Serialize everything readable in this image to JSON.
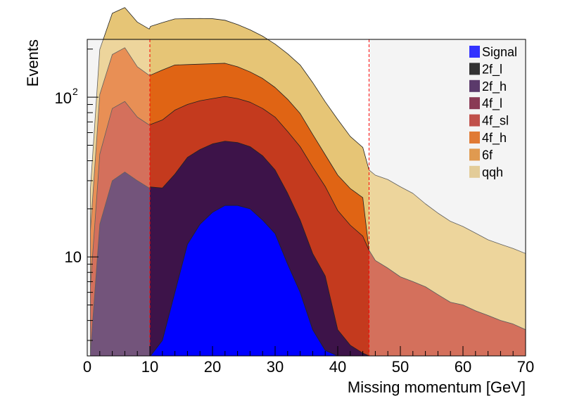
{
  "chart_data": {
    "type": "area",
    "title": "",
    "xlabel": "Missing momentum [GeV]",
    "ylabel": "Events",
    "xlim": [
      0,
      70
    ],
    "ylim": [
      2.4,
      230
    ],
    "y_scale": "log",
    "x_ticks": [
      "0",
      "10",
      "20",
      "30",
      "40",
      "50",
      "60",
      "70"
    ],
    "y_ticks": [
      {
        "value": 10,
        "base": "10",
        "exp": ""
      },
      {
        "value": 100,
        "base": "10",
        "exp": "2"
      }
    ],
    "cut_lines": [
      10,
      45
    ],
    "cut_line_color": "#ff0000",
    "excluded_region_color": "#f0f0f0",
    "legend_position": "top-right",
    "x": [
      0.5,
      2,
      4,
      6,
      8,
      9.9,
      10.1,
      12,
      14,
      16,
      18,
      20,
      22,
      24,
      26,
      28,
      30,
      32,
      34,
      36,
      38,
      40,
      42,
      44,
      45,
      46,
      48,
      50,
      52,
      54,
      56,
      58,
      60,
      62,
      64,
      66,
      68,
      70
    ],
    "series": [
      {
        "name": "Signal",
        "color": "#0000ff",
        "legend_color": "#3333ff",
        "values": [
          0,
          0,
          0,
          0,
          0,
          0,
          2.4,
          3,
          6,
          12,
          16,
          19,
          21,
          21,
          20,
          17,
          14,
          9,
          6,
          3.5,
          2.6,
          0,
          0,
          0,
          0,
          0,
          0,
          0,
          0,
          0,
          0,
          0,
          0,
          0,
          0,
          0,
          0,
          0
        ]
      },
      {
        "name": "2f_l",
        "color": "#333333",
        "legend_color": "#333333",
        "values": [
          0,
          0,
          0,
          0,
          0,
          0,
          0,
          0,
          0,
          0,
          0,
          0,
          0,
          0,
          0,
          0,
          0,
          0,
          0,
          0,
          0,
          0,
          0,
          0,
          0,
          0,
          0,
          0,
          0,
          0,
          0,
          0,
          0,
          0,
          0,
          0,
          0,
          0
        ]
      },
      {
        "name": "2f_h",
        "color": "#3d1349",
        "legend_color": "#5b3a6b",
        "values": [
          2.5,
          16,
          30,
          34,
          30,
          27,
          25,
          24,
          27,
          30,
          31,
          32,
          32,
          31,
          29,
          26,
          21,
          16,
          11,
          7,
          5,
          3.5,
          2.8,
          2.5,
          0,
          0,
          0,
          0,
          0,
          0,
          0,
          0,
          0,
          0,
          0,
          0,
          0,
          0
        ]
      },
      {
        "name": "4f_l",
        "color": "#8a3a4f",
        "legend_color": "#8a3a55",
        "values": [
          0,
          0,
          0,
          0,
          0,
          0,
          0,
          0,
          0,
          0,
          0,
          0,
          0,
          0,
          0,
          0,
          0,
          0,
          0,
          0,
          0,
          0,
          0,
          0,
          0,
          0,
          0,
          0,
          0,
          0,
          0,
          0,
          0,
          0,
          0,
          0,
          0,
          0
        ]
      },
      {
        "name": "4f_sl",
        "color": "#c43a1e",
        "legend_color": "#c0504a",
        "values": [
          4,
          28,
          55,
          60,
          45,
          40,
          40,
          45,
          50,
          48,
          48,
          47,
          48,
          46,
          44,
          42,
          40,
          36,
          32,
          26,
          20,
          16,
          13,
          11,
          11,
          9.5,
          8.5,
          7.5,
          7,
          6.5,
          5.8,
          5.2,
          5,
          4.6,
          4.3,
          4,
          3.8,
          3.5
        ]
      },
      {
        "name": "4f_h",
        "color": "#e06414",
        "legend_color": "#e07a35",
        "values": [
          8,
          60,
          100,
          110,
          80,
          70,
          70,
          76,
          76,
          70,
          66,
          64,
          62,
          57,
          51,
          46,
          40,
          36,
          30,
          22,
          16,
          13,
          11,
          10,
          0,
          0,
          0,
          0,
          0,
          0,
          0,
          0,
          0,
          0,
          0,
          0,
          0,
          0
        ]
      },
      {
        "name": "6f",
        "color": "#e09a50",
        "legend_color": "#e09a50",
        "values": [
          0,
          0,
          0,
          0,
          0,
          0,
          0,
          0,
          0,
          0,
          0,
          0,
          0,
          0,
          0,
          0,
          0,
          0,
          0,
          0,
          0,
          0,
          0,
          0,
          0,
          0,
          0,
          0,
          0,
          0,
          0,
          0,
          0,
          0,
          0,
          0,
          0,
          0
        ]
      },
      {
        "name": "qqh",
        "color": "#e6c576",
        "legend_color": "#e3cc98",
        "values": [
          12,
          95,
          150,
          160,
          140,
          130,
          140,
          145,
          150,
          150,
          150,
          148,
          140,
          130,
          120,
          110,
          100,
          90,
          80,
          65,
          50,
          40,
          30,
          25,
          24,
          23,
          22,
          20,
          18,
          15,
          13,
          11.5,
          10.5,
          9.5,
          8.5,
          8,
          7.5,
          7
        ]
      }
    ]
  }
}
